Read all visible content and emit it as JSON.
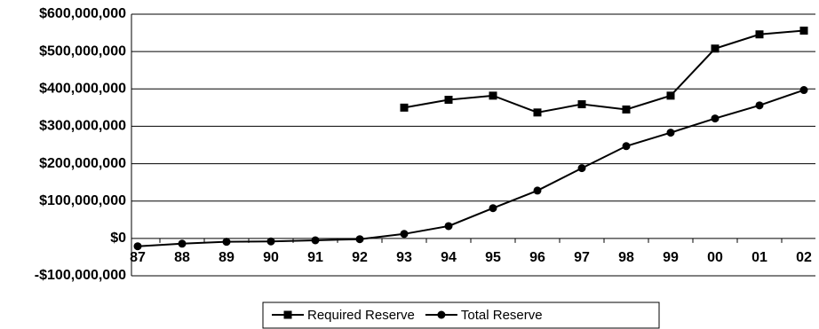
{
  "chart_data": {
    "type": "line",
    "categories": [
      "87",
      "88",
      "89",
      "90",
      "91",
      "92",
      "93",
      "94",
      "95",
      "96",
      "97",
      "98",
      "99",
      "00",
      "01",
      "02"
    ],
    "series": [
      {
        "name": "Required Reserve",
        "color": "#000000",
        "marker": "square",
        "values": [
          null,
          null,
          null,
          null,
          null,
          null,
          350000000,
          371000000,
          382000000,
          337000000,
          359000000,
          345000000,
          382000000,
          508000000,
          546000000,
          556000000
        ]
      },
      {
        "name": "Total Reserve",
        "color": "#000000",
        "marker": "circle",
        "values": [
          -21000000,
          -14000000,
          -9000000,
          -8000000,
          -5000000,
          -2000000,
          12000000,
          33000000,
          81000000,
          128000000,
          188000000,
          247000000,
          283000000,
          321000000,
          356000000,
          397000000
        ]
      }
    ],
    "ylim": [
      -100000000,
      600000000
    ],
    "yticks": [
      {
        "value": -100000000,
        "label": "-$100,000,000"
      },
      {
        "value": 0,
        "label": "$0"
      },
      {
        "value": 100000000,
        "label": "$100,000,000"
      },
      {
        "value": 200000000,
        "label": "$200,000,000"
      },
      {
        "value": 300000000,
        "label": "$300,000,000"
      },
      {
        "value": 400000000,
        "label": "$400,000,000"
      },
      {
        "value": 500000000,
        "label": "$500,000,000"
      },
      {
        "value": 600000000,
        "label": "$600,000,000"
      }
    ],
    "grid": true,
    "legend": "bottom"
  }
}
